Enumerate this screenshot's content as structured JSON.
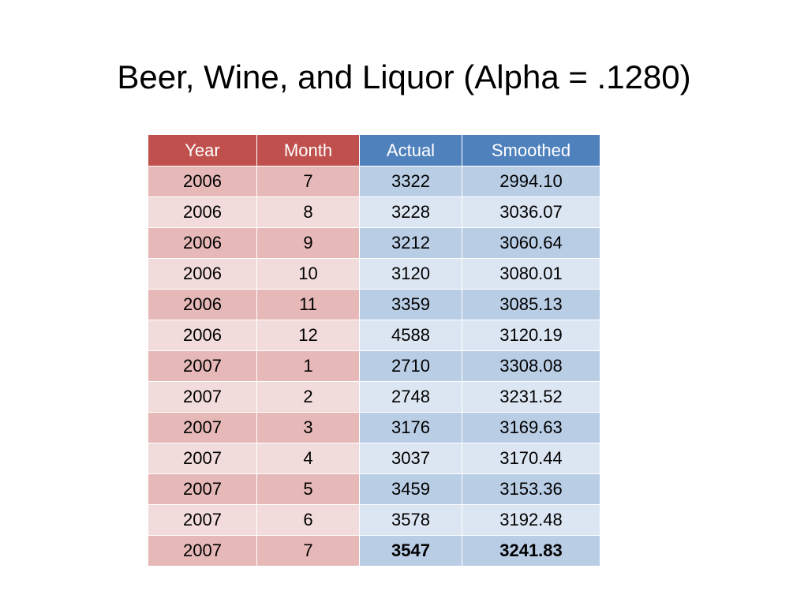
{
  "title": "Beer, Wine, and Liquor (Alpha = .1280)",
  "table": {
    "headers": [
      "Year",
      "Month",
      "Actual",
      "Smoothed"
    ],
    "rows": [
      [
        "2006",
        "7",
        "3322",
        "2994.10"
      ],
      [
        "2006",
        "8",
        "3228",
        "3036.07"
      ],
      [
        "2006",
        "9",
        "3212",
        "3060.64"
      ],
      [
        "2006",
        "10",
        "3120",
        "3080.01"
      ],
      [
        "2006",
        "11",
        "3359",
        "3085.13"
      ],
      [
        "2006",
        "12",
        "4588",
        "3120.19"
      ],
      [
        "2007",
        "1",
        "2710",
        "3308.08"
      ],
      [
        "2007",
        "2",
        "2748",
        "3231.52"
      ],
      [
        "2007",
        "3",
        "3176",
        "3169.63"
      ],
      [
        "2007",
        "4",
        "3037",
        "3170.44"
      ],
      [
        "2007",
        "5",
        "3459",
        "3153.36"
      ],
      [
        "2007",
        "6",
        "3578",
        "3192.48"
      ],
      [
        "2007",
        "7",
        "3547",
        "3241.83"
      ]
    ],
    "colors": {
      "year_month_header": "#c0504d",
      "actual_smoothed_header": "#4f81bd",
      "red_dark_row": "#e6b9b8",
      "red_light_row": "#f2dcdb",
      "blue_dark_row": "#b9cde5",
      "blue_light_row": "#dce6f2"
    }
  }
}
